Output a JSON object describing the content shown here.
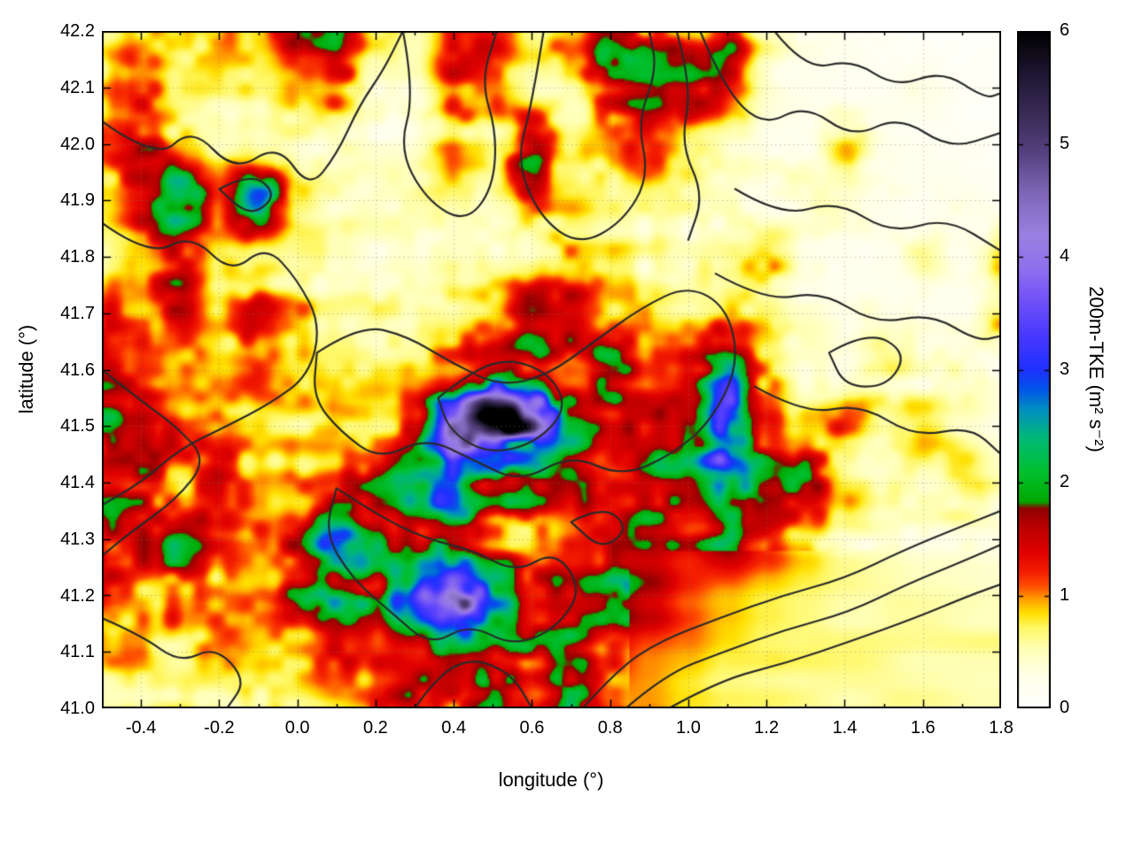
{
  "figure": {
    "xlabel": "longitude (°)",
    "ylabel": "latitude (°)",
    "colorbar_label": "200m-TKE (m² s⁻²)"
  },
  "chart_data": {
    "type": "heatmap",
    "title": "",
    "xlabel": "longitude (°)",
    "ylabel": "latitude (°)",
    "colorbar_label": "200m-TKE (m² s⁻²)",
    "xlim": [
      -0.5,
      1.8
    ],
    "ylim": [
      41.0,
      42.2
    ],
    "clim": [
      0,
      6
    ],
    "grid_on": true,
    "x_ticks": [
      -0.4,
      -0.2,
      0.0,
      0.2,
      0.4,
      0.6,
      0.8,
      1.0,
      1.2,
      1.4,
      1.6,
      1.8
    ],
    "x_tick_labels": [
      "-0.4",
      "-0.2",
      "0.0",
      "0.2",
      "0.4",
      "0.6",
      "0.8",
      "1.0",
      "1.2",
      "1.4",
      "1.6",
      "1.8"
    ],
    "y_ticks": [
      41.0,
      41.1,
      41.2,
      41.3,
      41.4,
      41.5,
      41.6,
      41.7,
      41.8,
      41.9,
      42.0,
      42.1,
      42.2
    ],
    "y_tick_labels": [
      "41.0",
      "41.1",
      "41.2",
      "41.3",
      "41.4",
      "41.5",
      "41.6",
      "41.7",
      "41.8",
      "41.9",
      "42.0",
      "42.1",
      "42.2"
    ],
    "cb_ticks": [
      0,
      1,
      2,
      3,
      4,
      5,
      6
    ],
    "cb_tick_labels": [
      "0",
      "1",
      "2",
      "3",
      "4",
      "5",
      "6"
    ],
    "heat_grid": {
      "lon_start": -0.5,
      "lon_step": 0.1,
      "lat_start": 42.2,
      "lat_step": -0.1,
      "units": "m2 s-2",
      "values": [
        [
          0.7,
          1.0,
          0.8,
          0.9,
          0.7,
          1.4,
          1.6,
          0.6,
          0.5,
          1.1,
          1.2,
          0.7,
          0.9,
          1.9,
          1.2,
          1.1,
          1.5,
          0.6,
          0.3,
          0.2,
          0.15,
          0.1,
          0.1,
          0.1
        ],
        [
          0.8,
          1.3,
          0.7,
          0.6,
          0.6,
          0.9,
          1.2,
          0.5,
          0.4,
          1.2,
          0.9,
          0.5,
          0.6,
          1.5,
          1.8,
          1.6,
          1.2,
          0.4,
          0.25,
          0.15,
          0.15,
          0.25,
          0.1,
          0.1
        ],
        [
          1.1,
          1.4,
          0.8,
          0.5,
          0.5,
          0.5,
          0.5,
          0.35,
          0.35,
          0.8,
          0.6,
          2.0,
          0.6,
          0.8,
          1.0,
          0.7,
          0.5,
          0.3,
          0.25,
          0.8,
          0.3,
          0.2,
          0.15,
          0.1
        ],
        [
          0.9,
          1.6,
          2.4,
          1.2,
          2.6,
          0.7,
          0.45,
          0.4,
          0.45,
          0.55,
          0.5,
          1.2,
          0.8,
          0.6,
          0.6,
          0.55,
          0.45,
          0.35,
          0.5,
          0.4,
          0.25,
          0.2,
          0.3,
          0.15
        ],
        [
          0.7,
          1.1,
          1.4,
          0.8,
          0.6,
          0.5,
          0.45,
          0.35,
          0.4,
          0.45,
          0.5,
          0.6,
          0.9,
          0.8,
          0.55,
          0.45,
          0.55,
          0.9,
          0.35,
          0.25,
          0.25,
          0.45,
          0.25,
          0.7
        ],
        [
          1.1,
          0.9,
          1.5,
          0.7,
          1.3,
          0.8,
          0.5,
          0.55,
          0.5,
          0.6,
          0.7,
          1.5,
          1.4,
          0.7,
          0.9,
          0.7,
          0.9,
          0.6,
          0.35,
          0.25,
          0.35,
          0.3,
          0.25,
          0.8
        ],
        [
          1.3,
          1.1,
          0.9,
          0.8,
          1.2,
          0.9,
          0.7,
          0.7,
          0.9,
          1.3,
          1.8,
          1.6,
          1.3,
          2.0,
          1.2,
          1.4,
          2.6,
          1.0,
          0.5,
          0.35,
          0.6,
          0.35,
          0.5,
          0.3
        ],
        [
          1.9,
          1.6,
          1.2,
          0.9,
          0.7,
          0.8,
          0.9,
          1.0,
          1.3,
          4.0,
          5.6,
          4.4,
          2.4,
          1.3,
          1.2,
          1.6,
          3.4,
          1.4,
          0.8,
          1.1,
          0.5,
          0.8,
          0.45,
          0.3
        ],
        [
          1.6,
          1.7,
          1.1,
          1.5,
          0.9,
          0.9,
          1.1,
          1.4,
          2.2,
          2.6,
          1.8,
          1.7,
          1.5,
          1.3,
          1.6,
          1.8,
          2.4,
          1.5,
          1.7,
          0.9,
          0.6,
          0.55,
          0.8,
          0.5
        ],
        [
          1.8,
          1.5,
          1.8,
          1.3,
          1.0,
          1.4,
          2.8,
          1.8,
          1.4,
          2.0,
          1.3,
          0.9,
          1.1,
          1.3,
          1.6,
          1.3,
          1.8,
          1.2,
          0.8,
          0.5,
          0.45,
          0.35,
          0.35,
          0.3
        ],
        [
          1.2,
          1.0,
          1.3,
          0.9,
          0.9,
          1.6,
          2.2,
          1.8,
          3.2,
          4.2,
          2.6,
          1.4,
          1.6,
          2.2,
          1.6,
          1.2,
          1.0,
          0.8,
          0.7,
          0.6,
          0.55,
          0.5,
          0.5,
          0.5
        ],
        [
          0.8,
          0.9,
          0.7,
          1.1,
          0.8,
          0.9,
          1.3,
          1.1,
          1.4,
          2.0,
          1.6,
          1.8,
          2.4,
          1.4,
          1.1,
          1.0,
          0.8,
          0.7,
          0.65,
          0.6,
          0.6,
          0.6,
          0.6,
          0.6
        ],
        [
          0.6,
          0.7,
          0.8,
          0.6,
          0.8,
          0.7,
          0.9,
          1.1,
          1.6,
          1.3,
          2.6,
          1.2,
          2.2,
          1.0,
          1.0,
          0.8,
          0.7,
          0.65,
          0.6,
          0.6,
          0.6,
          0.55,
          0.55,
          0.55
        ]
      ]
    },
    "palette": [
      [
        0.0,
        "#ffffff"
      ],
      [
        0.05,
        "#ffffe8"
      ],
      [
        0.09,
        "#ffffb0"
      ],
      [
        0.12,
        "#fff760"
      ],
      [
        0.14,
        "#ffe000"
      ],
      [
        0.16,
        "#ffa000"
      ],
      [
        0.18,
        "#ff5000"
      ],
      [
        0.2,
        "#f52000"
      ],
      [
        0.23,
        "#e00000"
      ],
      [
        0.27,
        "#b80000"
      ],
      [
        0.295,
        "#8f0000"
      ],
      [
        0.305,
        "#00a800"
      ],
      [
        0.35,
        "#00c030"
      ],
      [
        0.4,
        "#00b878"
      ],
      [
        0.44,
        "#0090c0"
      ],
      [
        0.47,
        "#0055e8"
      ],
      [
        0.5,
        "#2030ff"
      ],
      [
        0.55,
        "#4838ff"
      ],
      [
        0.6,
        "#6e50f8"
      ],
      [
        0.65,
        "#8f70ee"
      ],
      [
        0.7,
        "#9a80e0"
      ],
      [
        0.76,
        "#8066b8"
      ],
      [
        0.82,
        "#564180"
      ],
      [
        0.88,
        "#382a54"
      ],
      [
        0.94,
        "#1c1530"
      ],
      [
        1.0,
        "#000000"
      ]
    ],
    "contour_color": "#2a2a2a",
    "grid_line_color": "#787878",
    "contours_lonlat": [
      [
        [
          -0.5,
          42.04
        ],
        [
          -0.36,
          41.97
        ],
        [
          -0.27,
          42.03
        ],
        [
          -0.16,
          41.95
        ],
        [
          -0.05,
          42.0
        ],
        [
          0.03,
          41.92
        ],
        [
          0.1,
          41.98
        ],
        [
          0.16,
          42.07
        ],
        [
          0.22,
          42.13
        ],
        [
          0.27,
          42.2
        ]
      ],
      [
        [
          -0.5,
          41.86
        ],
        [
          -0.38,
          41.8
        ],
        [
          -0.27,
          41.84
        ],
        [
          -0.17,
          41.77
        ],
        [
          -0.08,
          41.82
        ],
        [
          0.0,
          41.76
        ],
        [
          0.06,
          41.68
        ],
        [
          0.03,
          41.59
        ],
        [
          -0.07,
          41.54
        ],
        [
          -0.18,
          41.5
        ],
        [
          -0.3,
          41.46
        ],
        [
          -0.4,
          41.4
        ],
        [
          -0.5,
          41.36
        ]
      ],
      [
        [
          -0.5,
          41.6
        ],
        [
          -0.41,
          41.55
        ],
        [
          -0.31,
          41.5
        ],
        [
          -0.23,
          41.44
        ],
        [
          -0.31,
          41.37
        ],
        [
          -0.43,
          41.31
        ],
        [
          -0.5,
          41.27
        ]
      ],
      [
        [
          -0.5,
          41.16
        ],
        [
          -0.4,
          41.13
        ],
        [
          -0.3,
          41.08
        ],
        [
          -0.21,
          41.11
        ],
        [
          -0.13,
          41.05
        ],
        [
          -0.18,
          41.0
        ]
      ],
      [
        [
          0.27,
          42.2
        ],
        [
          0.3,
          42.09
        ],
        [
          0.26,
          41.99
        ],
        [
          0.33,
          41.9
        ],
        [
          0.43,
          41.86
        ],
        [
          0.5,
          41.92
        ],
        [
          0.51,
          42.02
        ],
        [
          0.47,
          42.11
        ],
        [
          0.51,
          42.2
        ]
      ],
      [
        [
          0.63,
          42.2
        ],
        [
          0.6,
          42.07
        ],
        [
          0.56,
          41.97
        ],
        [
          0.62,
          41.87
        ],
        [
          0.72,
          41.82
        ],
        [
          0.83,
          41.86
        ],
        [
          0.9,
          41.94
        ],
        [
          0.87,
          42.04
        ],
        [
          0.92,
          42.13
        ],
        [
          0.9,
          42.2
        ]
      ],
      [
        [
          0.05,
          41.63
        ],
        [
          0.16,
          41.68
        ],
        [
          0.28,
          41.66
        ],
        [
          0.4,
          41.61
        ],
        [
          0.52,
          41.57
        ],
        [
          0.64,
          41.59
        ],
        [
          0.76,
          41.65
        ],
        [
          0.88,
          41.71
        ],
        [
          1.0,
          41.75
        ],
        [
          1.1,
          41.71
        ],
        [
          1.13,
          41.61
        ],
        [
          1.06,
          41.51
        ],
        [
          0.96,
          41.45
        ],
        [
          0.83,
          41.41
        ],
        [
          0.7,
          41.45
        ],
        [
          0.57,
          41.4
        ],
        [
          0.45,
          41.44
        ],
        [
          0.33,
          41.48
        ],
        [
          0.21,
          41.44
        ],
        [
          0.11,
          41.49
        ],
        [
          0.04,
          41.55
        ],
        [
          0.05,
          41.63
        ]
      ],
      [
        [
          0.36,
          41.55
        ],
        [
          0.45,
          41.6
        ],
        [
          0.55,
          41.62
        ],
        [
          0.65,
          41.59
        ],
        [
          0.69,
          41.53
        ],
        [
          0.61,
          41.47
        ],
        [
          0.49,
          41.45
        ],
        [
          0.39,
          41.49
        ],
        [
          0.36,
          41.55
        ]
      ],
      [
        [
          0.1,
          41.39
        ],
        [
          0.21,
          41.34
        ],
        [
          0.33,
          41.3
        ],
        [
          0.45,
          41.28
        ],
        [
          0.56,
          41.24
        ],
        [
          0.66,
          41.28
        ],
        [
          0.73,
          41.21
        ],
        [
          0.66,
          41.14
        ],
        [
          0.55,
          41.11
        ],
        [
          0.44,
          41.15
        ],
        [
          0.34,
          41.11
        ],
        [
          0.24,
          41.17
        ],
        [
          0.14,
          41.23
        ],
        [
          0.07,
          41.31
        ],
        [
          0.1,
          41.39
        ]
      ],
      [
        [
          0.3,
          41.0
        ],
        [
          0.36,
          41.06
        ],
        [
          0.45,
          41.09
        ],
        [
          0.55,
          41.06
        ],
        [
          0.6,
          41.0
        ]
      ],
      [
        [
          0.73,
          41.0
        ],
        [
          0.82,
          41.07
        ],
        [
          0.93,
          41.12
        ],
        [
          1.08,
          41.16
        ],
        [
          1.24,
          41.2
        ],
        [
          1.4,
          41.23
        ],
        [
          1.55,
          41.28
        ],
        [
          1.69,
          41.32
        ],
        [
          1.8,
          41.35
        ]
      ],
      [
        [
          0.84,
          41.0
        ],
        [
          0.94,
          41.06
        ],
        [
          1.09,
          41.1
        ],
        [
          1.25,
          41.14
        ],
        [
          1.41,
          41.17
        ],
        [
          1.56,
          41.22
        ],
        [
          1.7,
          41.26
        ],
        [
          1.8,
          41.29
        ]
      ],
      [
        [
          0.95,
          41.0
        ],
        [
          1.08,
          41.05
        ],
        [
          1.25,
          41.08
        ],
        [
          1.42,
          41.12
        ],
        [
          1.58,
          41.16
        ],
        [
          1.72,
          41.2
        ],
        [
          1.8,
          41.22
        ]
      ],
      [
        [
          1.03,
          42.2
        ],
        [
          1.09,
          42.1
        ],
        [
          1.19,
          42.03
        ],
        [
          1.3,
          42.07
        ],
        [
          1.42,
          42.01
        ],
        [
          1.54,
          42.05
        ],
        [
          1.67,
          41.99
        ],
        [
          1.8,
          42.02
        ]
      ],
      [
        [
          1.22,
          42.2
        ],
        [
          1.3,
          42.13
        ],
        [
          1.42,
          42.15
        ],
        [
          1.53,
          42.1
        ],
        [
          1.65,
          42.13
        ],
        [
          1.76,
          42.08
        ],
        [
          1.8,
          42.09
        ]
      ],
      [
        [
          1.12,
          41.92
        ],
        [
          1.24,
          41.87
        ],
        [
          1.38,
          41.9
        ],
        [
          1.52,
          41.84
        ],
        [
          1.66,
          41.87
        ],
        [
          1.8,
          41.81
        ]
      ],
      [
        [
          1.07,
          41.77
        ],
        [
          1.2,
          41.72
        ],
        [
          1.34,
          41.74
        ],
        [
          1.48,
          41.68
        ],
        [
          1.62,
          41.7
        ],
        [
          1.74,
          41.65
        ],
        [
          1.8,
          41.66
        ]
      ],
      [
        [
          1.17,
          41.57
        ],
        [
          1.3,
          41.52
        ],
        [
          1.44,
          41.54
        ],
        [
          1.58,
          41.48
        ],
        [
          1.72,
          41.5
        ],
        [
          1.8,
          41.45
        ]
      ],
      [
        [
          1.36,
          41.63
        ],
        [
          1.46,
          41.67
        ],
        [
          1.56,
          41.63
        ],
        [
          1.51,
          41.57
        ],
        [
          1.4,
          41.57
        ],
        [
          1.36,
          41.63
        ]
      ],
      [
        [
          0.97,
          42.2
        ],
        [
          1.01,
          42.1
        ],
        [
          0.98,
          42.0
        ],
        [
          1.04,
          41.91
        ],
        [
          1.0,
          41.83
        ]
      ],
      [
        [
          -0.2,
          41.92
        ],
        [
          -0.12,
          41.95
        ],
        [
          -0.05,
          41.91
        ],
        [
          -0.12,
          41.87
        ],
        [
          -0.2,
          41.92
        ]
      ],
      [
        [
          0.7,
          41.33
        ],
        [
          0.78,
          41.36
        ],
        [
          0.85,
          41.32
        ],
        [
          0.78,
          41.28
        ],
        [
          0.7,
          41.33
        ]
      ]
    ]
  }
}
